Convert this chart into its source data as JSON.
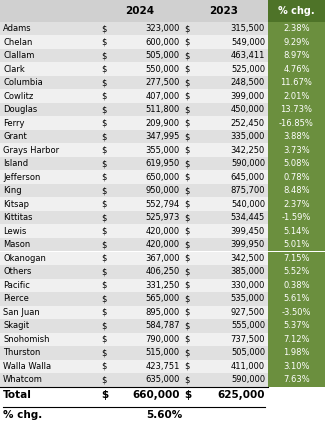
{
  "counties": [
    "Adams",
    "Chelan",
    "Clallam",
    "Clark",
    "Columbia",
    "Cowlitz",
    "Douglas",
    "Ferry",
    "Grant",
    "Grays Harbor",
    "Island",
    "Jefferson",
    "King",
    "Kitsap",
    "Kittitas",
    "Lewis",
    "Mason",
    "Okanogan",
    "Others",
    "Pacific",
    "Pierce",
    "San Juan",
    "Skagit",
    "Snohomish",
    "Thurston",
    "Walla Walla",
    "Whatcom"
  ],
  "values_2024": [
    323000,
    600000,
    505000,
    550000,
    277500,
    407000,
    511800,
    209900,
    347995,
    355000,
    619950,
    650000,
    950000,
    552794,
    525973,
    420000,
    420000,
    367000,
    406250,
    331250,
    565000,
    895000,
    584787,
    790000,
    515000,
    423751,
    635000
  ],
  "values_2023": [
    315500,
    549000,
    463411,
    525000,
    248500,
    399000,
    450000,
    252450,
    335000,
    342250,
    590000,
    645000,
    875700,
    540000,
    534445,
    399450,
    399950,
    342500,
    385000,
    330000,
    535000,
    927500,
    555000,
    737500,
    505000,
    411000,
    590000
  ],
  "pct_chg": [
    2.38,
    9.29,
    8.97,
    4.76,
    11.67,
    2.01,
    13.73,
    -16.85,
    3.88,
    3.73,
    5.08,
    0.78,
    8.48,
    2.37,
    -1.59,
    5.14,
    5.01,
    7.15,
    5.52,
    0.38,
    5.61,
    -3.5,
    5.37,
    7.12,
    1.98,
    3.1,
    7.63
  ],
  "total_2024": 660000,
  "total_2023": 625000,
  "total_pct_chg": 5.6,
  "header_dark_green": "#4e7328",
  "header_light_green": "#6b8f3e",
  "header_grey": "#d0d0d0",
  "row_bg_light": "#f0f0f0",
  "row_bg_dark": "#e0e0e0",
  "white": "#ffffff",
  "black": "#000000"
}
